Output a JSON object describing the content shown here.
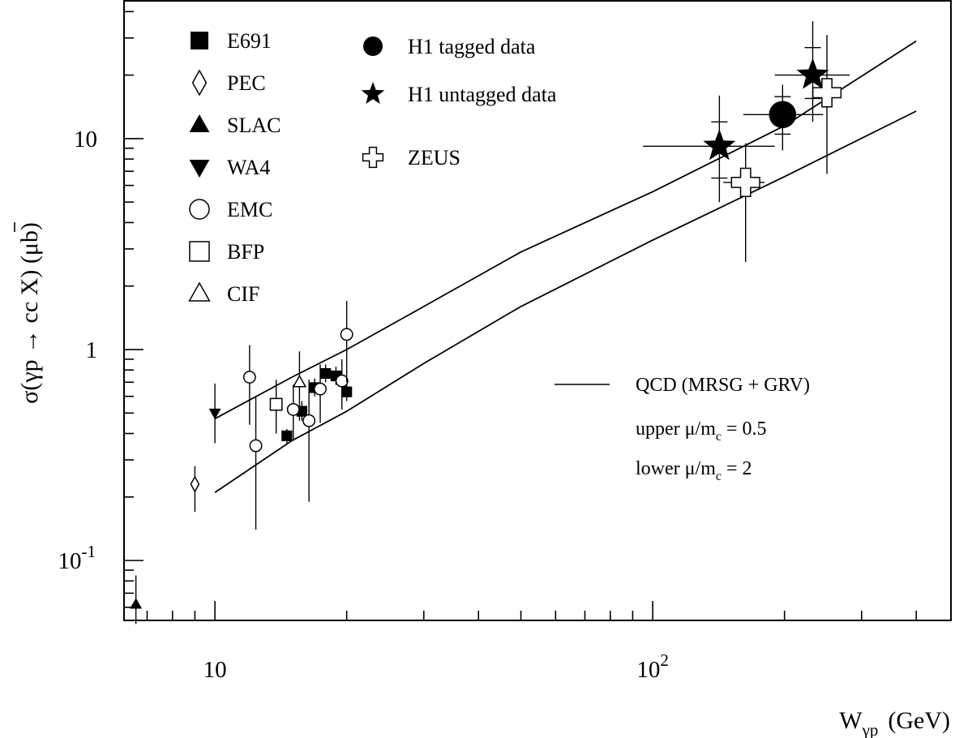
{
  "chart_data": {
    "type": "scatter",
    "title": "",
    "xlabel": {
      "main": "W",
      "sub": "γp",
      "unit": "(GeV)"
    },
    "ylabel": "σ(γp → cc X)  (μb)",
    "xscale": "log",
    "yscale": "log",
    "xlim": [
      6.2,
      480
    ],
    "ylim": [
      0.052,
      45
    ],
    "grid": false,
    "legend_position": "top-left",
    "x_tick_labels": [
      {
        "value": 10,
        "base": "10",
        "exp": ""
      },
      {
        "value": 100,
        "base": "10",
        "exp": "2"
      }
    ],
    "y_tick_labels": [
      {
        "value": 0.1,
        "base": "10",
        "exp": "-1"
      },
      {
        "value": 1,
        "base": "1",
        "exp": ""
      },
      {
        "value": 10,
        "base": "10",
        "exp": ""
      }
    ],
    "series": [
      {
        "name": "E691",
        "marker": "square-filled",
        "points": [
          {
            "x": 14.6,
            "y": 0.39,
            "ylo": 0.36,
            "yhi": 0.42
          },
          {
            "x": 15.8,
            "y": 0.51,
            "ylo": 0.46,
            "yhi": 0.57
          },
          {
            "x": 16.9,
            "y": 0.66,
            "ylo": 0.6,
            "yhi": 0.73
          },
          {
            "x": 17.9,
            "y": 0.77,
            "ylo": 0.7,
            "yhi": 0.85
          },
          {
            "x": 18.9,
            "y": 0.75,
            "ylo": 0.68,
            "yhi": 0.83
          },
          {
            "x": 20.0,
            "y": 0.63,
            "ylo": 0.57,
            "yhi": 0.7
          }
        ]
      },
      {
        "name": "PEC",
        "marker": "diamond-open",
        "points": [
          {
            "x": 9.0,
            "y": 0.23,
            "ylo": 0.17,
            "yhi": 0.28
          }
        ]
      },
      {
        "name": "SLAC",
        "marker": "triangle-up-filled",
        "points": [
          {
            "x": 6.6,
            "y": 0.062,
            "ylo": 0.05,
            "yhi": 0.085
          }
        ]
      },
      {
        "name": "WA4",
        "marker": "triangle-down-filled",
        "points": [
          {
            "x": 10.0,
            "y": 0.5,
            "ylo": 0.36,
            "yhi": 0.69
          }
        ]
      },
      {
        "name": "EMC",
        "marker": "circle-open",
        "points": [
          {
            "x": 12.0,
            "y": 0.74,
            "ylo": 0.44,
            "yhi": 1.05
          },
          {
            "x": 12.4,
            "y": 0.35,
            "ylo": 0.14,
            "yhi": 0.6
          },
          {
            "x": 15.1,
            "y": 0.52,
            "ylo": 0.37,
            "yhi": 0.68
          },
          {
            "x": 16.4,
            "y": 0.46,
            "ylo": 0.19,
            "yhi": 0.72
          },
          {
            "x": 17.4,
            "y": 0.65,
            "ylo": 0.45,
            "yhi": 0.85
          },
          {
            "x": 19.5,
            "y": 0.71,
            "ylo": 0.52,
            "yhi": 0.9
          },
          {
            "x": 20.0,
            "y": 1.18,
            "ylo": 0.7,
            "yhi": 1.7
          }
        ]
      },
      {
        "name": "BFP",
        "marker": "square-open",
        "points": [
          {
            "x": 13.8,
            "y": 0.55,
            "ylo": 0.4,
            "yhi": 0.72
          }
        ]
      },
      {
        "name": "CIF",
        "marker": "triangle-up-open",
        "points": [
          {
            "x": 15.6,
            "y": 0.7,
            "ylo": 0.46,
            "yhi": 0.98
          }
        ]
      },
      {
        "name": "H1 tagged data",
        "marker": "circle-filled",
        "points": [
          {
            "x": 198,
            "y": 13.0,
            "xlo": 161,
            "xhi": 245,
            "ylo": 8.8,
            "yhi": 18.0,
            "ystatlo": 10.5,
            "ystathi": 15.8
          }
        ]
      },
      {
        "name": "H1 untagged data",
        "marker": "star-filled",
        "points": [
          {
            "x": 142,
            "y": 9.2,
            "xlo": 95,
            "xhi": 190,
            "ylo": 5.0,
            "yhi": 16.0,
            "ystatlo": 6.5,
            "ystathi": 12.0
          },
          {
            "x": 232,
            "y": 20.0,
            "xlo": 190,
            "xhi": 282,
            "ylo": 12.0,
            "yhi": 36.0,
            "ystatlo": 15.5,
            "ystathi": 27.0
          }
        ]
      },
      {
        "name": "ZEUS",
        "marker": "cross-open",
        "points": [
          {
            "x": 163,
            "y": 6.2,
            "xlo": 145,
            "xhi": 180,
            "ylo": 2.6,
            "yhi": 9.5
          },
          {
            "x": 250,
            "y": 16.5,
            "xlo": 233,
            "xhi": 268,
            "ylo": 6.8,
            "yhi": 31.0
          }
        ]
      }
    ],
    "curves": [
      {
        "name": "upper",
        "points": [
          [
            10,
            0.47
          ],
          [
            15,
            0.74
          ],
          [
            20,
            1.0
          ],
          [
            30,
            1.6
          ],
          [
            50,
            2.9
          ],
          [
            100,
            5.6
          ],
          [
            200,
            11.5
          ],
          [
            400,
            29.0
          ]
        ]
      },
      {
        "name": "lower",
        "points": [
          [
            10,
            0.21
          ],
          [
            15,
            0.37
          ],
          [
            20,
            0.51
          ],
          [
            30,
            0.86
          ],
          [
            50,
            1.6
          ],
          [
            100,
            3.3
          ],
          [
            200,
            6.6
          ],
          [
            400,
            13.5
          ]
        ]
      }
    ],
    "annotations": {
      "line_label": "QCD (MRSG + GRV)",
      "upper": {
        "prefix": "upper ",
        "sym": "μ/m",
        "sub": "c",
        "suffix": " = 0.5"
      },
      "lower": {
        "prefix": "lower  ",
        "sym": "μ/m",
        "sub": "c",
        "suffix": " = 2"
      }
    }
  }
}
